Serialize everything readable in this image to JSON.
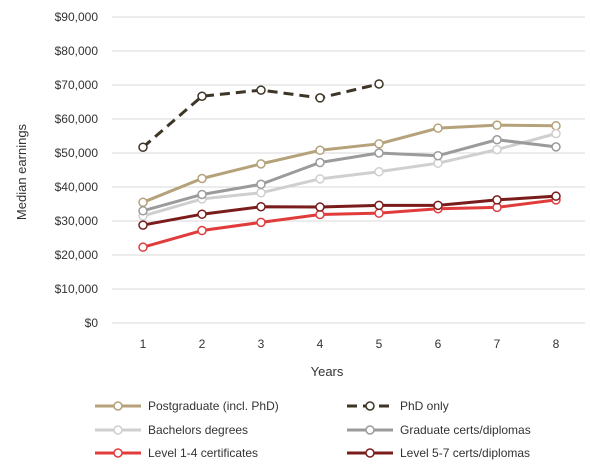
{
  "chart_data": {
    "type": "line",
    "xlabel": "Years",
    "ylabel": "Median earnings",
    "x": [
      1,
      2,
      3,
      4,
      5,
      6,
      7,
      8
    ],
    "x_ticks": [
      "1",
      "2",
      "3",
      "4",
      "5",
      "6",
      "7",
      "8"
    ],
    "ylim": [
      0,
      90000
    ],
    "y_ticks": [
      "$0",
      "$10,000",
      "$20,000",
      "$30,000",
      "$40,000",
      "$50,000",
      "$60,000",
      "$70,000",
      "$80,000",
      "$90,000"
    ],
    "grid": "horizontal",
    "legend_position": "bottom",
    "series": [
      {
        "name": "Postgraduate (incl. PhD)",
        "color": "#b5a27a",
        "dashed": false,
        "marker_fill": "#ffffff",
        "values": [
          35500,
          42500,
          46800,
          50800,
          52700,
          57300,
          58200,
          58000
        ]
      },
      {
        "name": "PhD only",
        "color": "#3d3526",
        "dashed": true,
        "marker_fill": "#ffffff",
        "values": [
          51700,
          66700,
          68500,
          66200,
          70300,
          null,
          null,
          null
        ]
      },
      {
        "name": "Bachelors degrees",
        "color": "#cfcfcf",
        "dashed": false,
        "marker_fill": "#ffffff",
        "values": [
          31500,
          36500,
          38300,
          42400,
          44500,
          47000,
          51000,
          55700
        ]
      },
      {
        "name": "Graduate certs/diplomas",
        "color": "#9b9b9b",
        "dashed": false,
        "marker_fill": "#ffffff",
        "values": [
          33000,
          37800,
          40800,
          47200,
          50000,
          49200,
          53900,
          51800
        ]
      },
      {
        "name": "Level 1-4 certificates",
        "color": "#e03c3c",
        "dashed": false,
        "marker_fill": "#ffffff",
        "values": [
          22300,
          27200,
          29600,
          31900,
          32300,
          33600,
          34000,
          36200
        ]
      },
      {
        "name": "Level 5-7 certs/diplomas",
        "color": "#7a1c1c",
        "dashed": false,
        "marker_fill": "#ffffff",
        "values": [
          28800,
          32000,
          34200,
          34100,
          34600,
          34600,
          36200,
          37300
        ]
      }
    ]
  }
}
